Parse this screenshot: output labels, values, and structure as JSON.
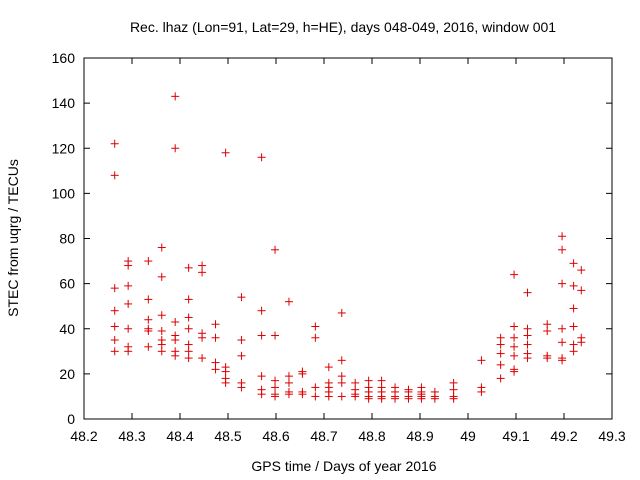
{
  "chart_data": {
    "type": "scatter",
    "title": "Rec. lhaz (Lon=91, Lat=29, h=HE), days 048-049, 2016, window 001",
    "xlabel": "GPS time / Days of year 2016",
    "ylabel": "STEC from uqrg / TECUs",
    "xlim": [
      48.2,
      49.3
    ],
    "ylim": [
      0,
      160
    ],
    "xticks": [
      48.2,
      48.3,
      48.4,
      48.5,
      48.6,
      48.7,
      48.8,
      48.9,
      49,
      49.1,
      49.2,
      49.3
    ],
    "xtick_labels": [
      "48.2",
      "48.3",
      "48.4",
      "48.5",
      "48.6",
      "48.7",
      "48.8",
      "48.9",
      "49",
      "49.1",
      "49.2",
      "49.3"
    ],
    "yticks": [
      0,
      20,
      40,
      60,
      80,
      100,
      120,
      140,
      160
    ],
    "ytick_labels": [
      "0",
      "20",
      "40",
      "60",
      "80",
      "100",
      "120",
      "140",
      "160"
    ],
    "marker": "+",
    "color": "#dd0000",
    "grid": false,
    "points": [
      [
        48.264,
        122
      ],
      [
        48.264,
        108
      ],
      [
        48.264,
        58
      ],
      [
        48.264,
        48
      ],
      [
        48.264,
        41
      ],
      [
        48.264,
        35
      ],
      [
        48.264,
        30
      ],
      [
        48.292,
        70
      ],
      [
        48.292,
        68
      ],
      [
        48.292,
        59
      ],
      [
        48.292,
        51
      ],
      [
        48.292,
        40
      ],
      [
        48.292,
        32
      ],
      [
        48.292,
        30
      ],
      [
        48.334,
        70
      ],
      [
        48.334,
        53
      ],
      [
        48.334,
        44
      ],
      [
        48.334,
        40
      ],
      [
        48.334,
        39
      ],
      [
        48.334,
        32
      ],
      [
        48.362,
        76
      ],
      [
        48.362,
        63
      ],
      [
        48.362,
        46
      ],
      [
        48.362,
        39
      ],
      [
        48.362,
        35
      ],
      [
        48.362,
        33
      ],
      [
        48.362,
        30
      ],
      [
        48.39,
        143
      ],
      [
        48.39,
        120
      ],
      [
        48.39,
        43
      ],
      [
        48.39,
        37
      ],
      [
        48.39,
        35
      ],
      [
        48.39,
        30
      ],
      [
        48.39,
        28
      ],
      [
        48.418,
        67
      ],
      [
        48.418,
        53
      ],
      [
        48.418,
        45
      ],
      [
        48.418,
        40
      ],
      [
        48.418,
        33
      ],
      [
        48.418,
        30
      ],
      [
        48.418,
        27
      ],
      [
        48.446,
        68
      ],
      [
        48.446,
        65
      ],
      [
        48.446,
        38
      ],
      [
        48.446,
        36
      ],
      [
        48.446,
        27
      ],
      [
        48.474,
        42
      ],
      [
        48.474,
        36
      ],
      [
        48.474,
        25
      ],
      [
        48.474,
        22
      ],
      [
        48.495,
        118
      ],
      [
        48.495,
        23
      ],
      [
        48.495,
        21
      ],
      [
        48.495,
        18
      ],
      [
        48.495,
        16
      ],
      [
        48.528,
        54
      ],
      [
        48.528,
        35
      ],
      [
        48.528,
        28
      ],
      [
        48.528,
        16
      ],
      [
        48.528,
        14
      ],
      [
        48.57,
        116
      ],
      [
        48.57,
        48
      ],
      [
        48.57,
        37
      ],
      [
        48.57,
        19
      ],
      [
        48.57,
        13
      ],
      [
        48.57,
        11
      ],
      [
        48.598,
        75
      ],
      [
        48.598,
        37
      ],
      [
        48.598,
        17
      ],
      [
        48.598,
        14
      ],
      [
        48.598,
        11
      ],
      [
        48.598,
        10
      ],
      [
        48.627,
        52
      ],
      [
        48.627,
        19
      ],
      [
        48.627,
        16
      ],
      [
        48.627,
        12
      ],
      [
        48.627,
        11
      ],
      [
        48.655,
        21
      ],
      [
        48.655,
        20
      ],
      [
        48.655,
        12
      ],
      [
        48.655,
        11
      ],
      [
        48.682,
        41
      ],
      [
        48.682,
        36
      ],
      [
        48.682,
        14
      ],
      [
        48.682,
        10
      ],
      [
        48.71,
        23
      ],
      [
        48.71,
        16
      ],
      [
        48.71,
        14
      ],
      [
        48.71,
        12
      ],
      [
        48.71,
        10
      ],
      [
        48.737,
        47
      ],
      [
        48.737,
        26
      ],
      [
        48.737,
        19
      ],
      [
        48.737,
        16
      ],
      [
        48.737,
        10
      ],
      [
        48.765,
        16
      ],
      [
        48.765,
        13
      ],
      [
        48.765,
        11
      ],
      [
        48.765,
        10
      ],
      [
        48.793,
        17
      ],
      [
        48.793,
        14
      ],
      [
        48.793,
        12
      ],
      [
        48.793,
        10
      ],
      [
        48.793,
        9
      ],
      [
        48.82,
        17
      ],
      [
        48.82,
        14
      ],
      [
        48.82,
        12
      ],
      [
        48.82,
        10
      ],
      [
        48.82,
        9
      ],
      [
        48.848,
        14
      ],
      [
        48.848,
        12
      ],
      [
        48.848,
        10
      ],
      [
        48.848,
        9
      ],
      [
        48.876,
        13
      ],
      [
        48.876,
        12
      ],
      [
        48.876,
        10
      ],
      [
        48.876,
        9
      ],
      [
        48.903,
        14
      ],
      [
        48.903,
        12
      ],
      [
        48.903,
        11
      ],
      [
        48.903,
        10
      ],
      [
        48.903,
        9
      ],
      [
        48.931,
        12
      ],
      [
        48.931,
        10
      ],
      [
        48.931,
        9
      ],
      [
        48.97,
        16
      ],
      [
        48.97,
        13
      ],
      [
        48.97,
        10
      ],
      [
        48.97,
        9
      ],
      [
        49.028,
        26
      ],
      [
        49.028,
        14
      ],
      [
        49.028,
        12
      ],
      [
        49.068,
        36
      ],
      [
        49.068,
        33
      ],
      [
        49.068,
        29
      ],
      [
        49.068,
        24
      ],
      [
        49.068,
        18
      ],
      [
        49.096,
        64
      ],
      [
        49.096,
        41
      ],
      [
        49.096,
        36
      ],
      [
        49.096,
        32
      ],
      [
        49.096,
        28
      ],
      [
        49.096,
        22
      ],
      [
        49.096,
        21
      ],
      [
        49.124,
        56
      ],
      [
        49.124,
        40
      ],
      [
        49.124,
        37
      ],
      [
        49.124,
        33
      ],
      [
        49.124,
        29
      ],
      [
        49.124,
        27
      ],
      [
        49.165,
        42
      ],
      [
        49.165,
        39
      ],
      [
        49.165,
        28
      ],
      [
        49.165,
        27
      ],
      [
        49.196,
        81
      ],
      [
        49.196,
        75
      ],
      [
        49.196,
        60
      ],
      [
        49.196,
        40
      ],
      [
        49.196,
        34
      ],
      [
        49.196,
        27
      ],
      [
        49.196,
        26
      ],
      [
        49.22,
        69
      ],
      [
        49.22,
        59
      ],
      [
        49.22,
        49
      ],
      [
        49.22,
        41
      ],
      [
        49.22,
        33
      ],
      [
        49.22,
        30
      ],
      [
        49.236,
        66
      ],
      [
        49.236,
        57
      ],
      [
        49.236,
        36
      ],
      [
        49.236,
        34
      ]
    ]
  }
}
